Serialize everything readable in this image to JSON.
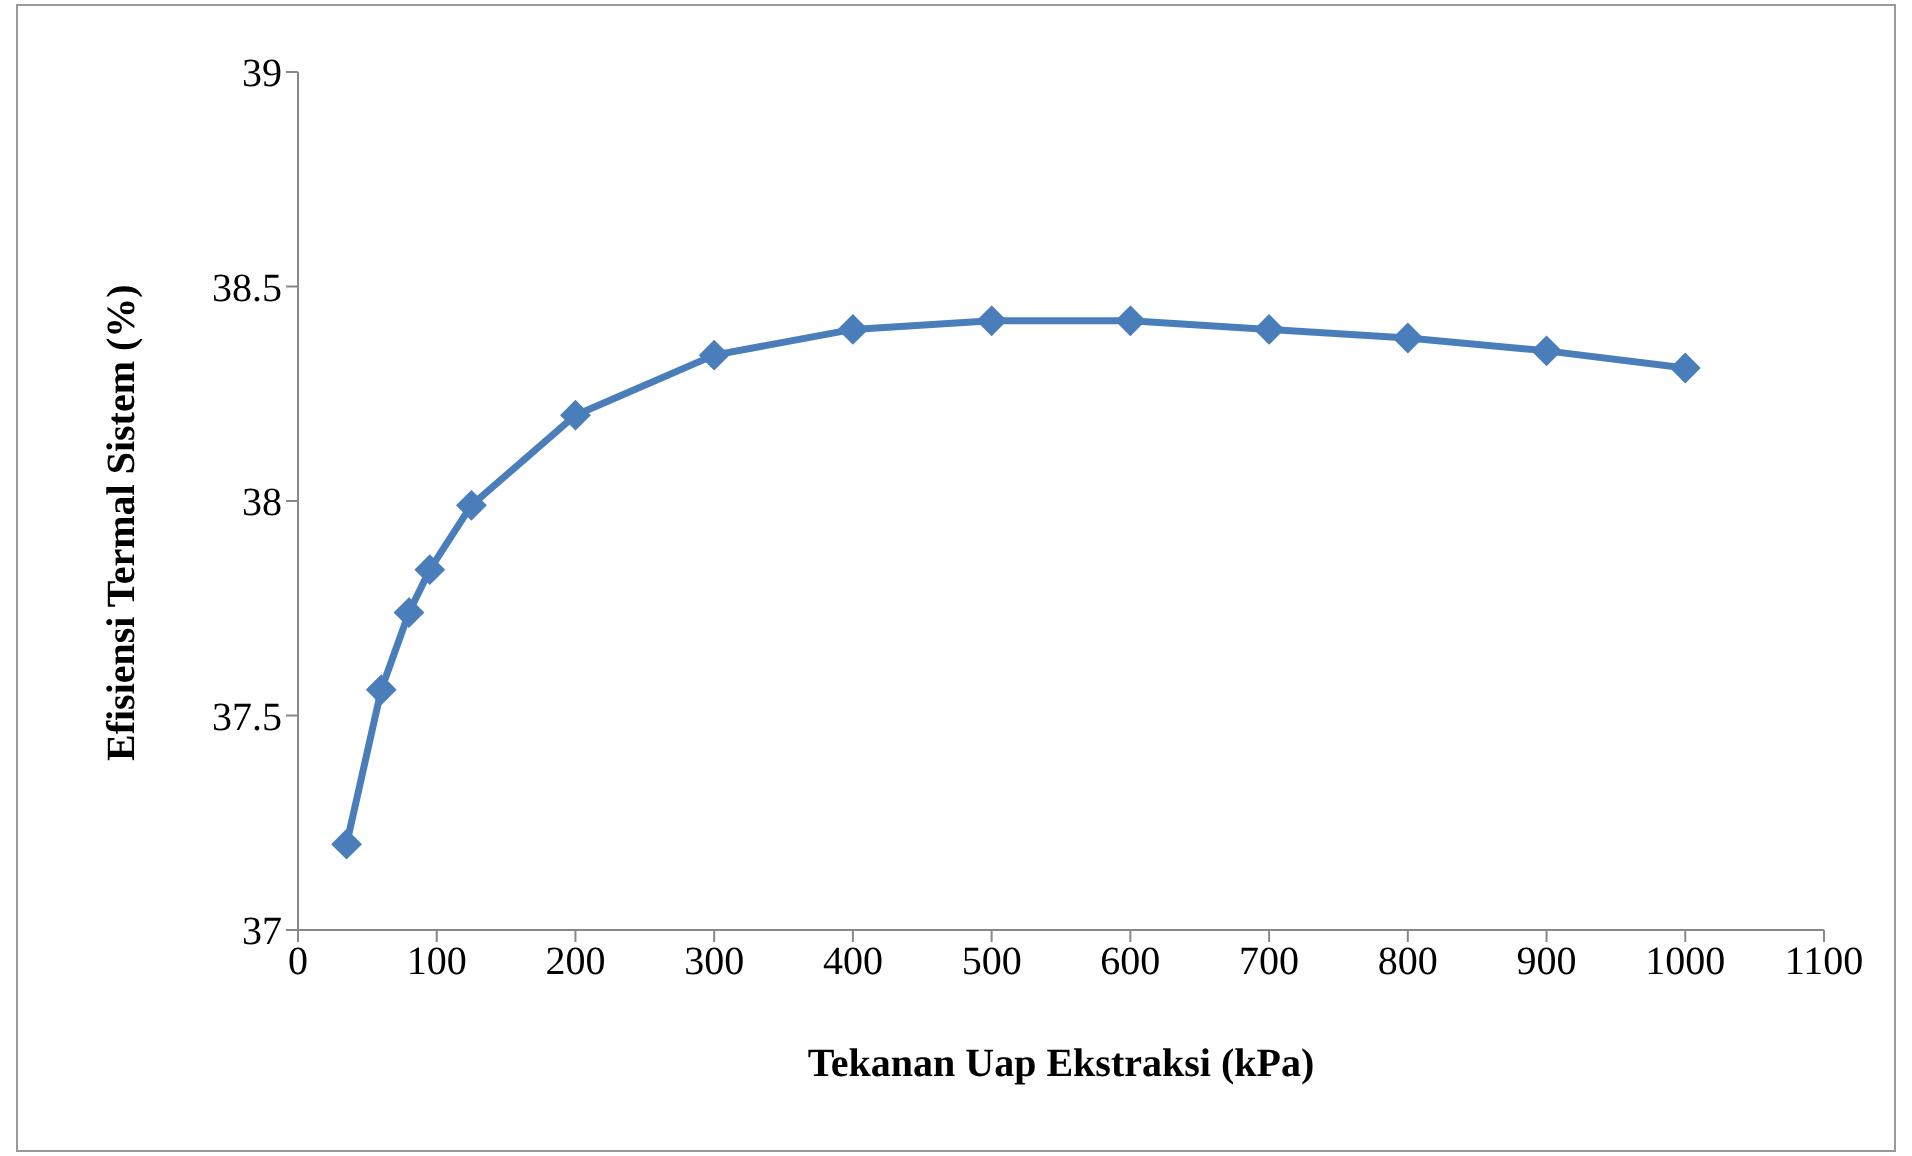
{
  "chart_data": {
    "type": "line",
    "xlabel": "Tekanan Uap Ekstraksi (kPa)",
    "ylabel": "Efisiensi Termal Sistem (%)",
    "x": [
      35,
      60,
      80,
      95,
      125,
      200,
      300,
      400,
      500,
      600,
      700,
      800,
      900,
      1000
    ],
    "series": [
      {
        "color": "#4a7ebb",
        "values": [
          37.2,
          37.56,
          37.74,
          37.84,
          37.99,
          38.2,
          38.34,
          38.4,
          38.42,
          38.42,
          38.4,
          38.38,
          38.35,
          38.31
        ]
      }
    ],
    "xlim": [
      0,
      1100
    ],
    "xticks": [
      0,
      100,
      200,
      300,
      400,
      500,
      600,
      700,
      800,
      900,
      1000,
      1100
    ],
    "ylim": [
      37,
      39
    ],
    "yticks": [
      37,
      37.5,
      38,
      38.5,
      39
    ],
    "grid": false,
    "legend": false,
    "marker": "diamond",
    "line_style": "solid"
  }
}
